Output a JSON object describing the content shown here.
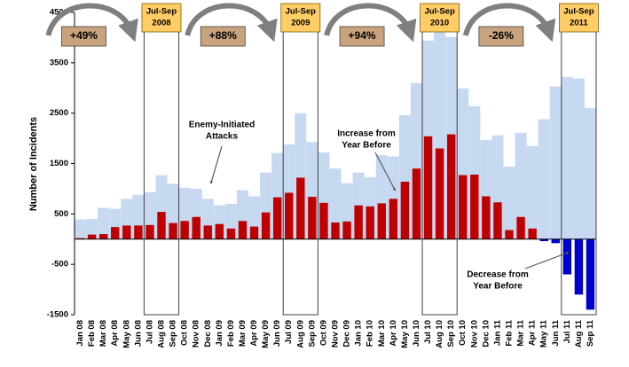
{
  "chart_data": {
    "type": "bar",
    "y_label": "Number of Incidents",
    "categories": [
      "Jan 08",
      "Feb 08",
      "Mar 08",
      "Apr 08",
      "May 08",
      "Jun 08",
      "Jul 08",
      "Aug 08",
      "Sep 08",
      "Oct 08",
      "Nov 08",
      "Dec 08",
      "Jan 09",
      "Feb 09",
      "Mar 09",
      "Apr 09",
      "May 09",
      "Jun 09",
      "Jul 09",
      "Aug 09",
      "Sep 09",
      "Oct 09",
      "Nov 09",
      "Dec 09",
      "Jan 10",
      "Feb 10",
      "Mar 10",
      "Apr 10",
      "May 10",
      "Jun 10",
      "Jul 10",
      "Aug 10",
      "Sep 10",
      "Oct 10",
      "Nov 10",
      "Dec 10",
      "Jan 11",
      "Feb 11",
      "Mar 11",
      "Apr 11",
      "May 11",
      "Jun 11",
      "Jul 11",
      "Aug 11",
      "Sep 11"
    ],
    "series": [
      {
        "color": "#c6d9f1",
        "values": [
          390,
          400,
          620,
          600,
          800,
          880,
          930,
          1270,
          1100,
          1020,
          1000,
          800,
          670,
          700,
          970,
          850,
          1320,
          1710,
          1880,
          2500,
          1930,
          1720,
          1400,
          1110,
          1320,
          1230,
          1670,
          1640,
          2460,
          3100,
          3940,
          4170,
          4010,
          2990,
          2640,
          1970,
          2060,
          1440,
          2110,
          1850,
          2380,
          3030,
          3220,
          3190,
          2600
        ]
      },
      {
        "color": "#c00000",
        "negative_color": "#0000cc",
        "values": [
          20,
          90,
          100,
          240,
          270,
          270,
          280,
          540,
          320,
          360,
          440,
          270,
          300,
          210,
          360,
          250,
          530,
          830,
          920,
          1220,
          840,
          720,
          330,
          350,
          670,
          650,
          710,
          800,
          1140,
          1400,
          2040,
          1800,
          2080,
          1270,
          1280,
          850,
          730,
          180,
          440,
          210,
          -40,
          -80,
          -700,
          -1100,
          -1400
        ]
      }
    ],
    "ylim": [
      -1500,
      4500
    ],
    "yticks": [
      -1500,
      -500,
      500,
      1500,
      2500,
      3500,
      4500
    ],
    "highlights": [
      {
        "from": "Jul 08",
        "to": "Sep 08",
        "lines": [
          "Jul-Sep",
          "2008"
        ],
        "change": "+49%"
      },
      {
        "from": "Jul 09",
        "to": "Sep 09",
        "lines": [
          "Jul-Sep",
          "2009"
        ],
        "change": "+88%"
      },
      {
        "from": "Jul 10",
        "to": "Sep 10",
        "lines": [
          "Jul-Sep",
          "2010"
        ],
        "change": "+94%"
      },
      {
        "from": "Jul 11",
        "to": "Sep 11",
        "lines": [
          "Jul-Sep",
          "2011"
        ],
        "change": "-26%"
      }
    ],
    "annotations": {
      "attacks": [
        "Enemy-Initiated",
        "Attacks"
      ],
      "increase": [
        "Increase from",
        "Year Before"
      ],
      "decrease": [
        "Decrease from",
        "Year Before"
      ]
    }
  }
}
